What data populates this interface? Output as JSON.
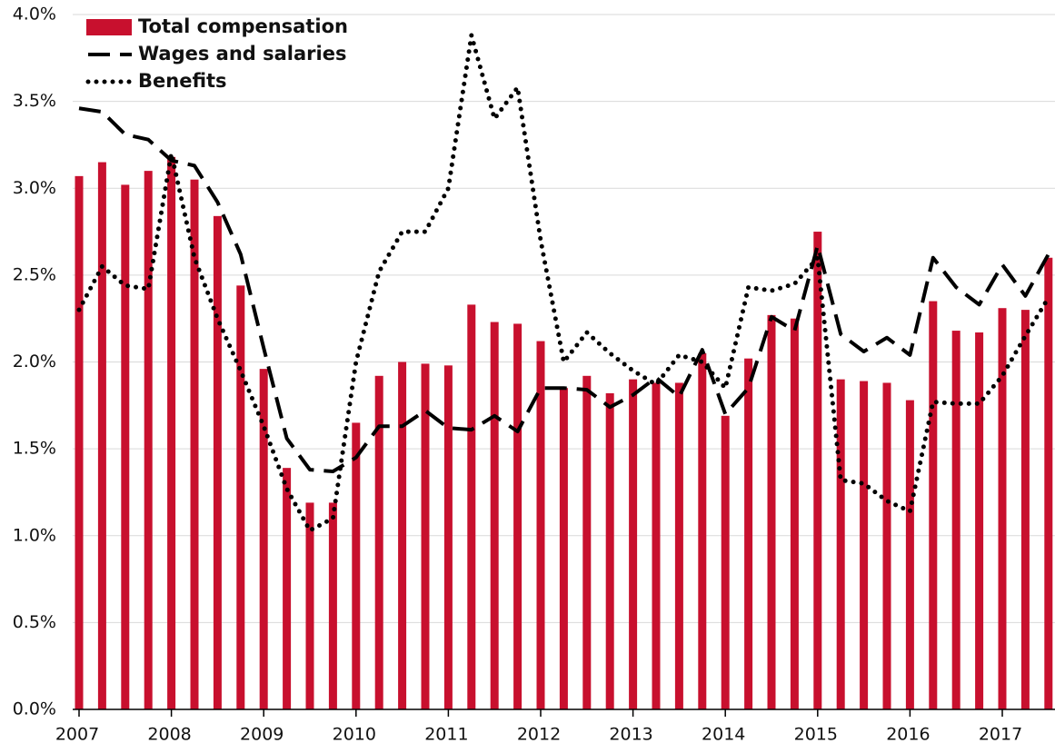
{
  "chart_data": {
    "type": "bar",
    "categories": [
      "2007",
      null,
      null,
      null,
      "2008",
      null,
      null,
      null,
      "2009",
      null,
      null,
      null,
      "2010",
      null,
      null,
      null,
      "2011",
      null,
      null,
      null,
      "2012",
      null,
      null,
      null,
      "2013",
      null,
      null,
      null,
      "2014",
      null,
      null,
      null,
      "2015",
      null,
      null,
      null,
      "2016",
      null,
      null,
      null,
      "2017",
      null,
      null
    ],
    "series": [
      {
        "name": "Total compensation",
        "type": "bar",
        "color": "#c8102e",
        "values": [
          3.07,
          3.15,
          3.02,
          3.1,
          3.18,
          3.05,
          2.84,
          2.44,
          1.96,
          1.39,
          1.19,
          1.19,
          1.65,
          1.92,
          2.0,
          1.99,
          1.98,
          2.33,
          2.23,
          2.22,
          2.12,
          1.85,
          1.92,
          1.82,
          1.9,
          1.88,
          1.88,
          2.05,
          1.69,
          2.02,
          2.27,
          2.25,
          2.75,
          1.9,
          1.89,
          1.88,
          1.78,
          2.35,
          2.18,
          2.17,
          2.31,
          2.3,
          2.6
        ]
      },
      {
        "name": "Wages and salaries",
        "type": "line",
        "dash": "dashed",
        "color": "#000000",
        "values": [
          3.46,
          3.44,
          3.31,
          3.28,
          3.16,
          3.13,
          2.92,
          2.62,
          2.08,
          1.56,
          1.38,
          1.37,
          1.45,
          1.63,
          1.63,
          1.72,
          1.62,
          1.61,
          1.69,
          1.6,
          1.85,
          1.85,
          1.84,
          1.74,
          1.81,
          1.91,
          1.8,
          2.07,
          1.7,
          1.85,
          2.26,
          2.18,
          2.67,
          2.16,
          2.06,
          2.14,
          2.04,
          2.6,
          2.43,
          2.33,
          2.56,
          2.38,
          2.62
        ]
      },
      {
        "name": "Benefits",
        "type": "line",
        "dash": "dotted",
        "color": "#000000",
        "values": [
          2.3,
          2.55,
          2.44,
          2.42,
          3.2,
          2.6,
          2.25,
          1.95,
          1.63,
          1.27,
          1.03,
          1.1,
          2.0,
          2.52,
          2.75,
          2.75,
          3.0,
          3.88,
          3.4,
          3.58,
          2.7,
          2.0,
          2.17,
          2.05,
          1.95,
          1.87,
          2.04,
          2.0,
          1.85,
          2.43,
          2.41,
          2.45,
          2.6,
          1.32,
          1.3,
          1.2,
          1.14,
          1.77,
          1.76,
          1.76,
          1.92,
          2.15,
          2.37
        ]
      }
    ],
    "ylim": [
      0,
      4
    ],
    "yticks": [
      {
        "value": 0,
        "label": "0.0%"
      },
      {
        "value": 0.5,
        "label": "0.5%"
      },
      {
        "value": 1,
        "label": "1.0%"
      },
      {
        "value": 1.5,
        "label": "1.5%"
      },
      {
        "value": 2,
        "label": "2.0%"
      },
      {
        "value": 2.5,
        "label": "2.5%"
      },
      {
        "value": 3,
        "label": "3.0%"
      },
      {
        "value": 3.5,
        "label": "3.5%"
      },
      {
        "value": 4,
        "label": "4.0%"
      }
    ],
    "grid": true,
    "legend": "upper left"
  }
}
